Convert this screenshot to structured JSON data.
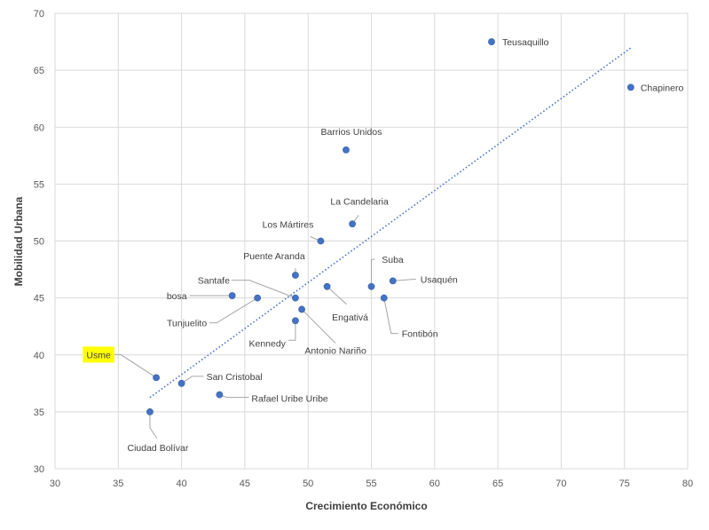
{
  "chart_data": {
    "type": "scatter",
    "xlabel": "Crecimiento Económico",
    "ylabel": "Mobilidad Urbana",
    "xlim": [
      30,
      80
    ],
    "ylim": [
      30,
      70
    ],
    "x_ticks": [
      30,
      35,
      40,
      45,
      50,
      55,
      60,
      65,
      70,
      75,
      80
    ],
    "y_ticks": [
      30,
      35,
      40,
      45,
      50,
      55,
      60,
      65,
      70
    ],
    "grid": true,
    "legend": "none",
    "marker_color": "#4472c4",
    "highlight_color": "#ffff00",
    "points": [
      {
        "label": "Teusaquillo",
        "x": 64.5,
        "y": 67.5
      },
      {
        "label": "Chapinero",
        "x": 75.5,
        "y": 63.5
      },
      {
        "label": "Barrios Unidos",
        "x": 53,
        "y": 58
      },
      {
        "label": "La Candelaria",
        "x": 53.5,
        "y": 51.5
      },
      {
        "label": "Los Mártires",
        "x": 51,
        "y": 50
      },
      {
        "label": "Puente Aranda",
        "x": 49,
        "y": 47
      },
      {
        "label": "Suba",
        "x": 55,
        "y": 46
      },
      {
        "label": "Usaquén",
        "x": 56.7,
        "y": 46.5
      },
      {
        "label": "Santafe",
        "x": 49,
        "y": 45
      },
      {
        "label": "bosa",
        "x": 44,
        "y": 45.2
      },
      {
        "label": "Tunjuelito",
        "x": 46,
        "y": 45
      },
      {
        "label": "Engativá",
        "x": 51.5,
        "y": 46
      },
      {
        "label": "Fontibón",
        "x": 56,
        "y": 45
      },
      {
        "label": "Antonio Nariño",
        "x": 49.5,
        "y": 44
      },
      {
        "label": "Kennedy",
        "x": 49,
        "y": 43
      },
      {
        "label": "Usme",
        "x": 38,
        "y": 38,
        "highlight": true
      },
      {
        "label": "San Cristobal",
        "x": 40,
        "y": 37.5
      },
      {
        "label": "Rafael Uribe Uribe",
        "x": 43,
        "y": 36.5
      },
      {
        "label": "Ciudad Bolívar",
        "x": 37.5,
        "y": 35
      }
    ],
    "trendline": {
      "type": "linear",
      "style": "dotted",
      "x_range": [
        37.5,
        75.5
      ]
    }
  }
}
